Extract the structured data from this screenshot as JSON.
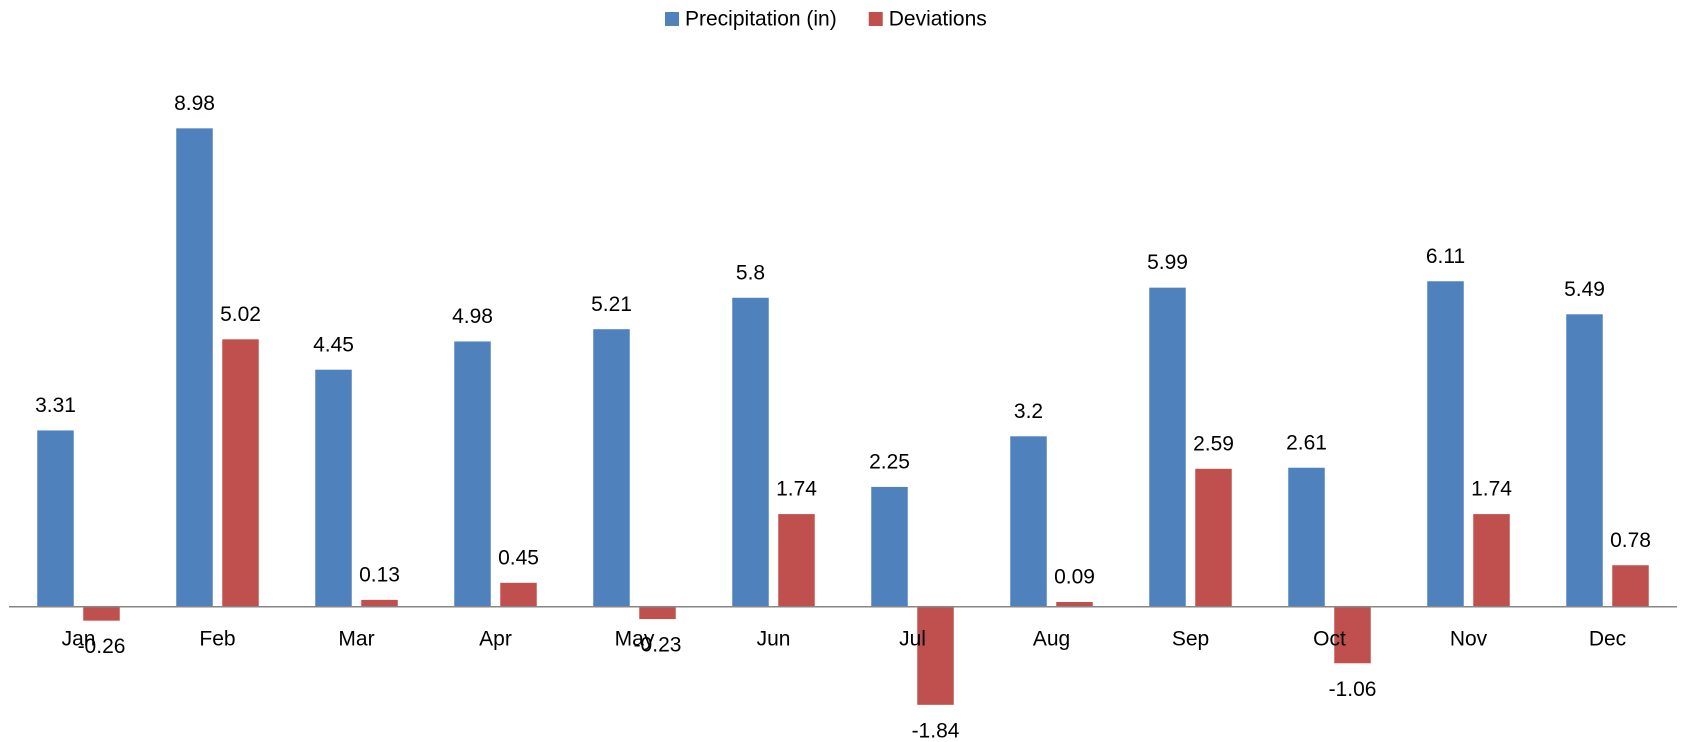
{
  "chart_data": {
    "type": "bar",
    "categories": [
      "Jan",
      "Feb",
      "Mar",
      "Apr",
      "May",
      "Jun",
      "Jul",
      "Aug",
      "Sep",
      "Oct",
      "Nov",
      "Dec"
    ],
    "series": [
      {
        "name": "Precipitation (in)",
        "color": "#4f81bd",
        "values": [
          3.31,
          8.98,
          4.45,
          4.98,
          5.21,
          5.8,
          2.25,
          3.2,
          5.99,
          2.61,
          6.11,
          5.49
        ]
      },
      {
        "name": "Deviations",
        "color": "#c0504d",
        "values": [
          -0.26,
          5.02,
          0.13,
          0.45,
          -0.23,
          1.74,
          -1.84,
          0.09,
          2.59,
          -1.06,
          1.74,
          0.78
        ]
      }
    ],
    "ylim": [
      -2.5,
      10
    ],
    "legend": "top"
  }
}
